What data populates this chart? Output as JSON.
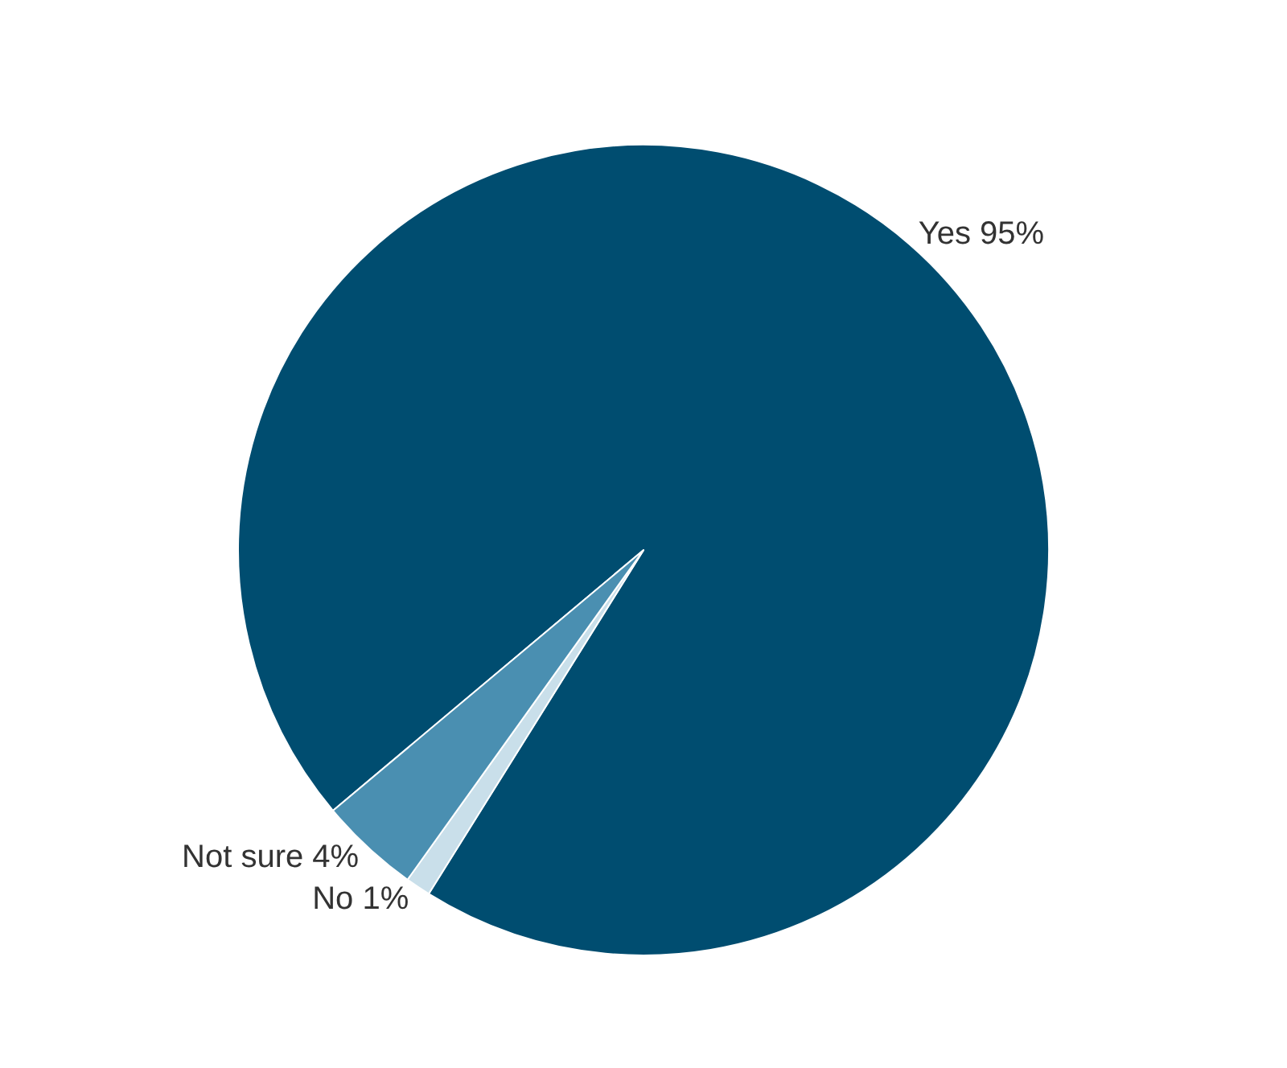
{
  "chart_data": {
    "type": "pie",
    "categories": [
      "Yes",
      "No",
      "Not sure"
    ],
    "values": [
      95,
      1,
      4
    ],
    "value_labels": [
      "95%",
      "1%",
      "4%"
    ],
    "colors": [
      "#004d70",
      "#c9dfea",
      "#4a8fb1"
    ],
    "legend": false
  }
}
